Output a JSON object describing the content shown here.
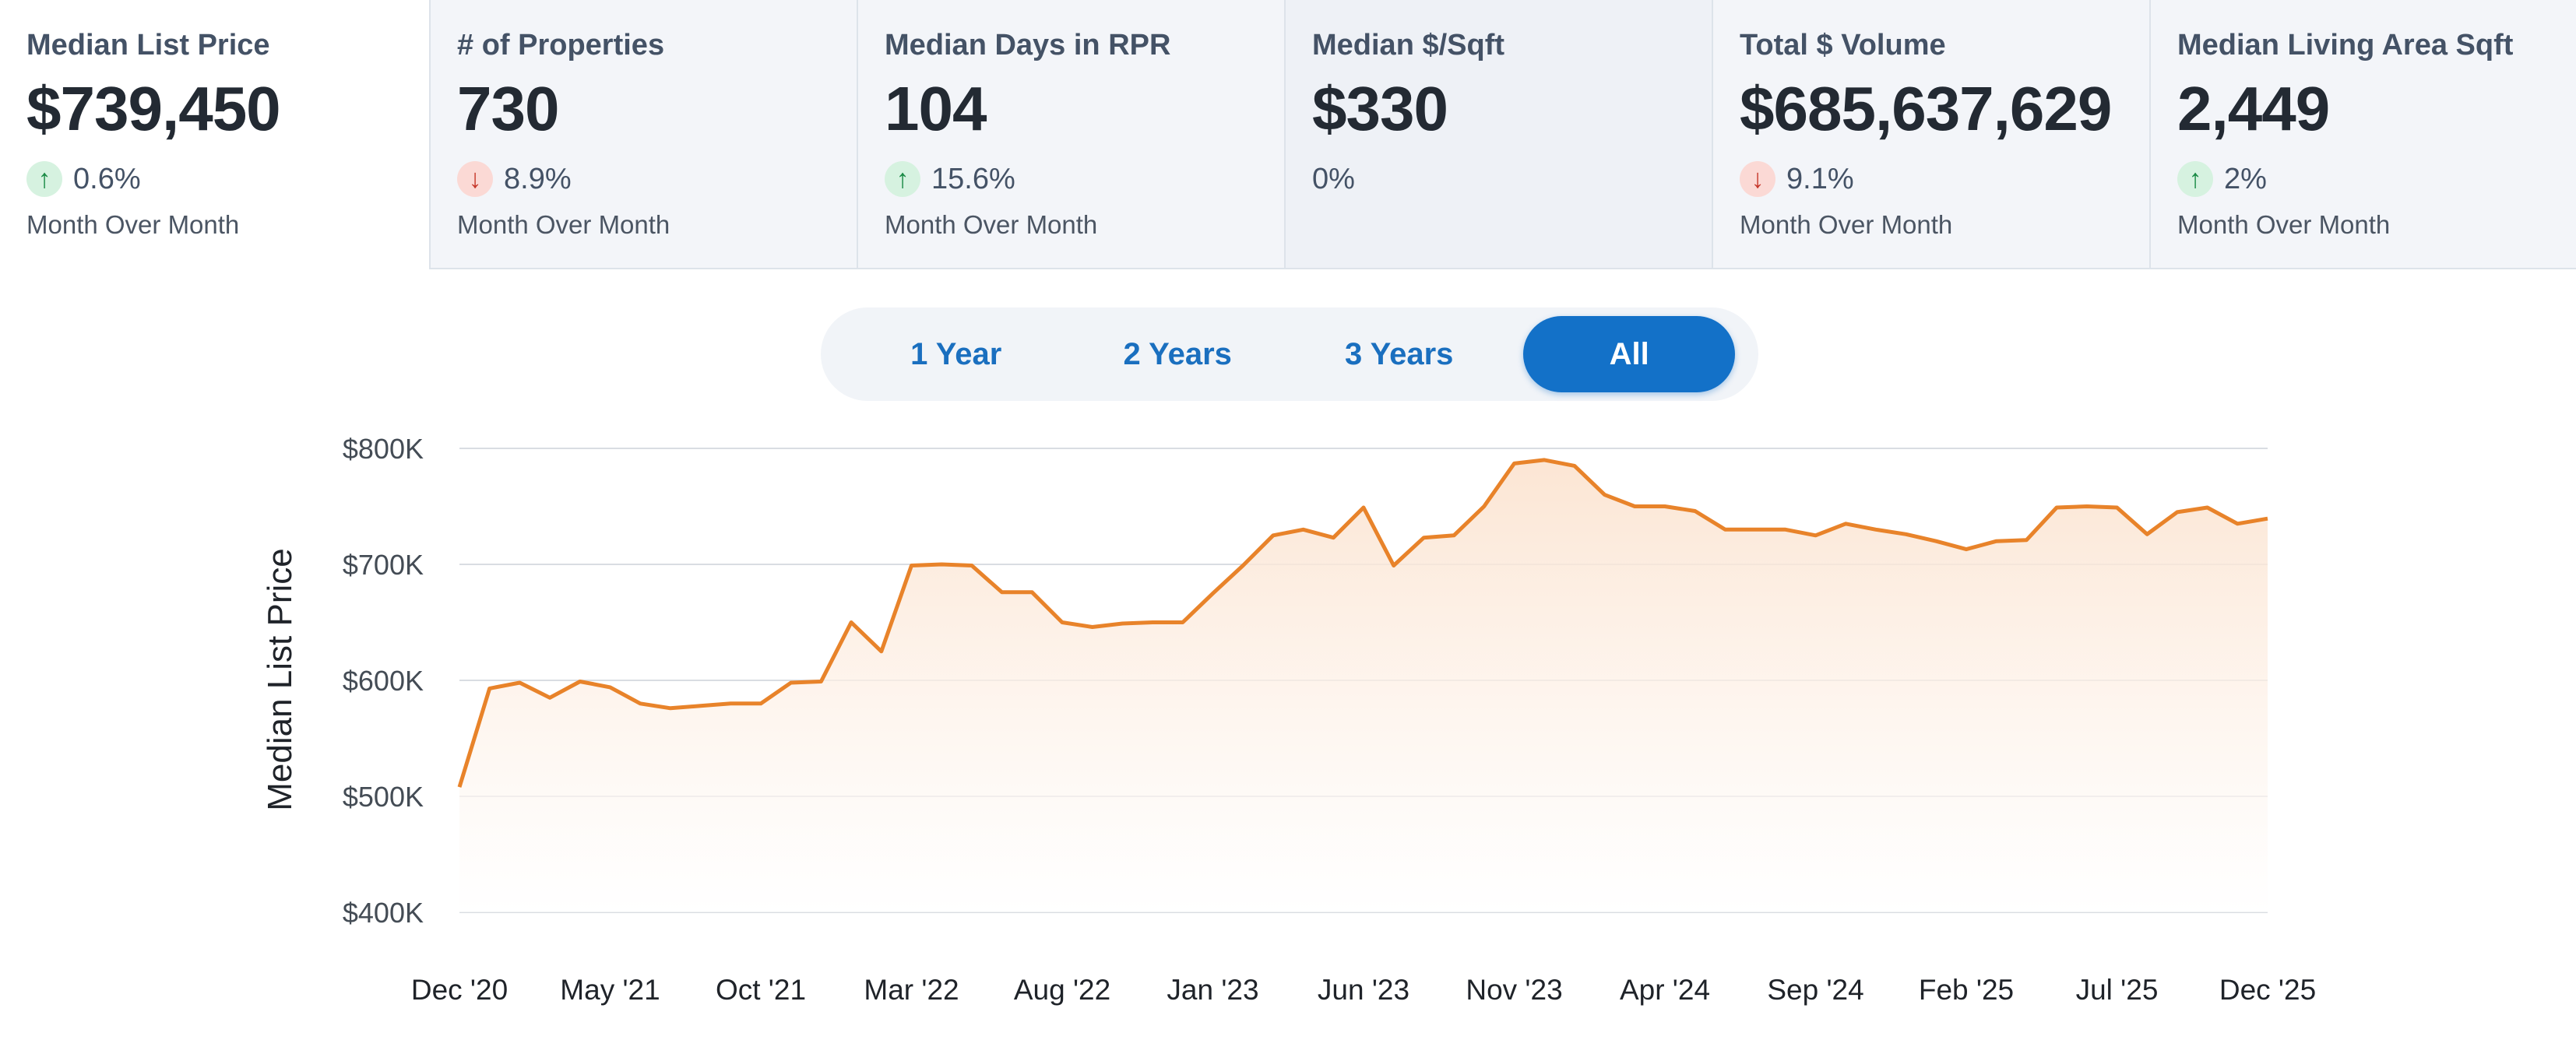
{
  "cards": [
    {
      "title": "Median List Price",
      "value": "$739,450",
      "direction": "up",
      "arrow": "↑",
      "change": "0.6%",
      "period": "Month Over Month"
    },
    {
      "title": "# of Properties",
      "value": "730",
      "direction": "down",
      "arrow": "↓",
      "change": "8.9%",
      "period": "Month Over Month"
    },
    {
      "title": "Median Days in RPR",
      "value": "104",
      "direction": "up",
      "arrow": "↑",
      "change": "15.6%",
      "period": "Month Over Month"
    },
    {
      "title": "Median $/Sqft",
      "value": "$330",
      "direction": "none",
      "change": "0%"
    },
    {
      "title": "Total $ Volume",
      "value": "$685,637,629",
      "direction": "down",
      "arrow": "↓",
      "change": "9.1%",
      "period": "Month Over Month"
    },
    {
      "title": "Median Living Area Sqft",
      "value": "2,449",
      "direction": "up",
      "arrow": "↑",
      "change": "2%",
      "period": "Month Over Month"
    }
  ],
  "range_toggle": {
    "options": [
      "1 Year",
      "2 Years",
      "3 Years",
      "All"
    ],
    "selected": "All"
  },
  "colors": {
    "line": "#e8832a",
    "fill_top": "#fbe1cc",
    "active_button": "#1371c8",
    "up": "#1a8a45",
    "down": "#c6382b"
  },
  "chart_data": {
    "type": "area",
    "ylabel": "Median List Price",
    "ylim": [
      400000,
      800000
    ],
    "yticks": [
      {
        "value": 800000,
        "label": "$800K"
      },
      {
        "value": 700000,
        "label": "$700K"
      },
      {
        "value": 600000,
        "label": "$600K"
      },
      {
        "value": 500000,
        "label": "$500K"
      },
      {
        "value": 400000,
        "label": "$400K"
      }
    ],
    "xticks": [
      "Dec '20",
      "May '21",
      "Oct '21",
      "Mar '22",
      "Aug '22",
      "Jan '23",
      "Jun '23",
      "Nov '23",
      "Apr '24",
      "Sep '24",
      "Feb '25",
      "Jul '25",
      "Dec '25"
    ],
    "x_start": "Dec '20",
    "x_end": "Dec '25",
    "grid": true,
    "series": [
      {
        "values": [
          508000,
          593000,
          598000,
          585000,
          599000,
          594000,
          580000,
          576000,
          578000,
          580000,
          580000,
          598000,
          599000,
          650000,
          625000,
          699000,
          700000,
          699000,
          676000,
          676000,
          650000,
          646000,
          649000,
          650000,
          650000,
          675000,
          699000,
          725000,
          730000,
          723000,
          749000,
          699000,
          723000,
          725000,
          750000,
          787000,
          790000,
          785000,
          760000,
          750000,
          750000,
          746000,
          730000,
          730000,
          730000,
          725000,
          735000,
          730000,
          726000,
          720000,
          713000,
          720000,
          721000,
          749000,
          750000,
          749000,
          726000,
          745000,
          749000,
          735000,
          739450
        ]
      }
    ]
  }
}
